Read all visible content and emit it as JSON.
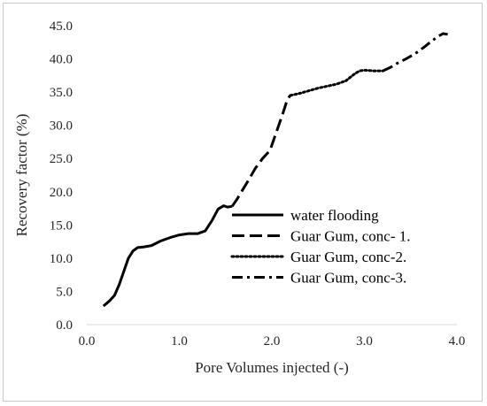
{
  "chart_data": {
    "type": "line",
    "title": "",
    "xlabel": "Pore Volumes injected (-)",
    "ylabel": "Recovery factor (%)",
    "xlim": [
      0.0,
      4.0
    ],
    "ylim": [
      0.0,
      45.0
    ],
    "xticks": [
      "0.0",
      "1.0",
      "2.0",
      "3.0",
      "4.0"
    ],
    "yticks": [
      "0.0",
      "5.0",
      "10.0",
      "15.0",
      "20.0",
      "25.0",
      "30.0",
      "35.0",
      "40.0",
      "45.0"
    ],
    "grid": false,
    "legend_position": "bottom-right",
    "series": [
      {
        "name": "water flooding",
        "style": "solid",
        "points": [
          [
            0.18,
            2.8
          ],
          [
            0.24,
            3.5
          ],
          [
            0.3,
            4.4
          ],
          [
            0.35,
            6.0
          ],
          [
            0.4,
            8.0
          ],
          [
            0.45,
            10.0
          ],
          [
            0.5,
            11.1
          ],
          [
            0.55,
            11.6
          ],
          [
            0.62,
            11.7
          ],
          [
            0.7,
            11.9
          ],
          [
            0.8,
            12.6
          ],
          [
            0.9,
            13.1
          ],
          [
            1.0,
            13.5
          ],
          [
            1.1,
            13.7
          ],
          [
            1.2,
            13.7
          ],
          [
            1.28,
            14.1
          ],
          [
            1.35,
            15.6
          ],
          [
            1.42,
            17.4
          ],
          [
            1.48,
            17.9
          ],
          [
            1.52,
            17.7
          ],
          [
            1.57,
            17.8
          ]
        ]
      },
      {
        "name": "Guar Gum, conc- 1.",
        "style": "dashed",
        "points": [
          [
            1.57,
            17.8
          ],
          [
            1.62,
            18.8
          ],
          [
            1.68,
            20.2
          ],
          [
            1.75,
            21.8
          ],
          [
            1.82,
            23.5
          ],
          [
            1.9,
            25.0
          ],
          [
            1.98,
            26.2
          ],
          [
            2.05,
            29.0
          ],
          [
            2.12,
            31.8
          ],
          [
            2.17,
            34.0
          ],
          [
            2.2,
            34.5
          ]
        ]
      },
      {
        "name": "Guar Gum, conc-2.",
        "style": "dotted",
        "points": [
          [
            2.2,
            34.5
          ],
          [
            2.3,
            34.8
          ],
          [
            2.4,
            35.2
          ],
          [
            2.5,
            35.6
          ],
          [
            2.6,
            35.9
          ],
          [
            2.7,
            36.2
          ],
          [
            2.8,
            36.7
          ],
          [
            2.9,
            37.8
          ],
          [
            2.95,
            38.2
          ],
          [
            3.0,
            38.3
          ],
          [
            3.1,
            38.2
          ],
          [
            3.2,
            38.2
          ]
        ]
      },
      {
        "name": "Guar Gum, conc-3.",
        "style": "dashdot",
        "points": [
          [
            3.2,
            38.2
          ],
          [
            3.28,
            38.7
          ],
          [
            3.35,
            39.3
          ],
          [
            3.45,
            40.0
          ],
          [
            3.55,
            40.8
          ],
          [
            3.65,
            41.8
          ],
          [
            3.72,
            42.6
          ],
          [
            3.8,
            43.4
          ],
          [
            3.85,
            43.8
          ],
          [
            3.9,
            43.7
          ]
        ]
      }
    ]
  }
}
